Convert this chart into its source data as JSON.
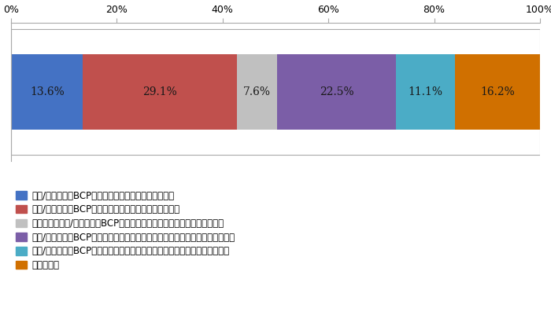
{
  "values": [
    13.6,
    29.1,
    7.6,
    22.5,
    11.1,
    16.2
  ],
  "colors": [
    "#4472C4",
    "#C0504D",
    "#C0C0C0",
    "#7B5EA7",
    "#4BACC6",
    "#D07000"
  ],
  "text_colors": [
    "#1a1a1a",
    "#1a1a1a",
    "#1a1a1a",
    "#1a1a1a",
    "#1a1a1a",
    "#1a1a1a"
  ],
  "labels": [
    "地域/企業間連携BCPに既に対応しており、課題はない",
    "地域/企業間連携BCPに既に対応しているが、課題がある",
    "これまでに地域/企業間連携BCPに対応しようと試みたが、途中で断念した",
    "地域/企業間連携BCPに対応していないが、将来的に対応を検討する予定である",
    "地域/企業間連携BCPに対応していないし、今後も対応を検討する予定はない",
    "分からない"
  ],
  "xticks": [
    0,
    20,
    40,
    60,
    80,
    100
  ],
  "xtick_labels": [
    "0%",
    "20%",
    "40%",
    "60%",
    "80%",
    "100%"
  ],
  "bar_height": 0.6,
  "text_fontsize": 10,
  "legend_fontsize": 8.5,
  "tick_fontsize": 9,
  "background_color": "#FFFFFF",
  "spine_color": "#AAAAAA",
  "border_color": "#AAAAAA"
}
